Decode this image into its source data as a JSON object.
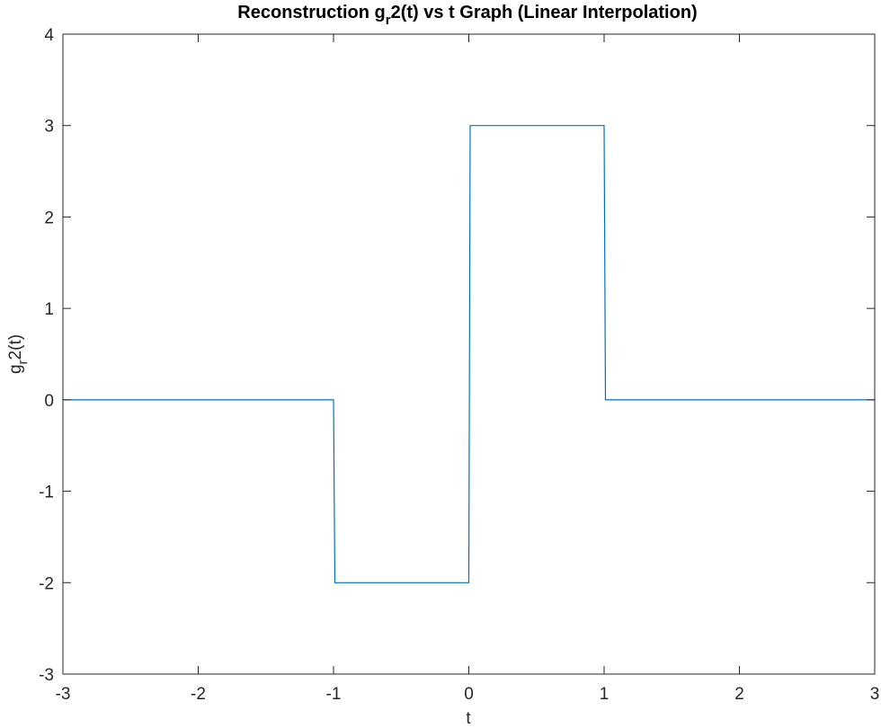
{
  "chart_data": {
    "type": "line",
    "title": {
      "pre": "Reconstruction g",
      "sub": "r",
      "post": "2(t) vs t Graph (Linear Interpolation)"
    },
    "xlabel": "t",
    "ylabel": {
      "pre": "g",
      "sub": "r",
      "post": "2(t)"
    },
    "xlim": [
      -3,
      3
    ],
    "ylim": [
      -3,
      4
    ],
    "xticks": [
      -3,
      -2,
      -1,
      0,
      1,
      2,
      3
    ],
    "xtick_labels": [
      "-3",
      "-2",
      "-1",
      "0",
      "1",
      "2",
      "3"
    ],
    "yticks": [
      -3,
      -2,
      -1,
      0,
      1,
      2,
      3,
      4
    ],
    "ytick_labels": [
      "-3",
      "-2",
      "-1",
      "0",
      "1",
      "2",
      "3",
      "4"
    ],
    "grid": false,
    "series": [
      {
        "color": "#0072BD",
        "x": [
          -3,
          -1,
          -0.99,
          0,
          0.01,
          1,
          1.01,
          3
        ],
        "y": [
          0,
          0,
          -2,
          -2,
          3,
          3,
          0,
          0
        ]
      }
    ]
  }
}
